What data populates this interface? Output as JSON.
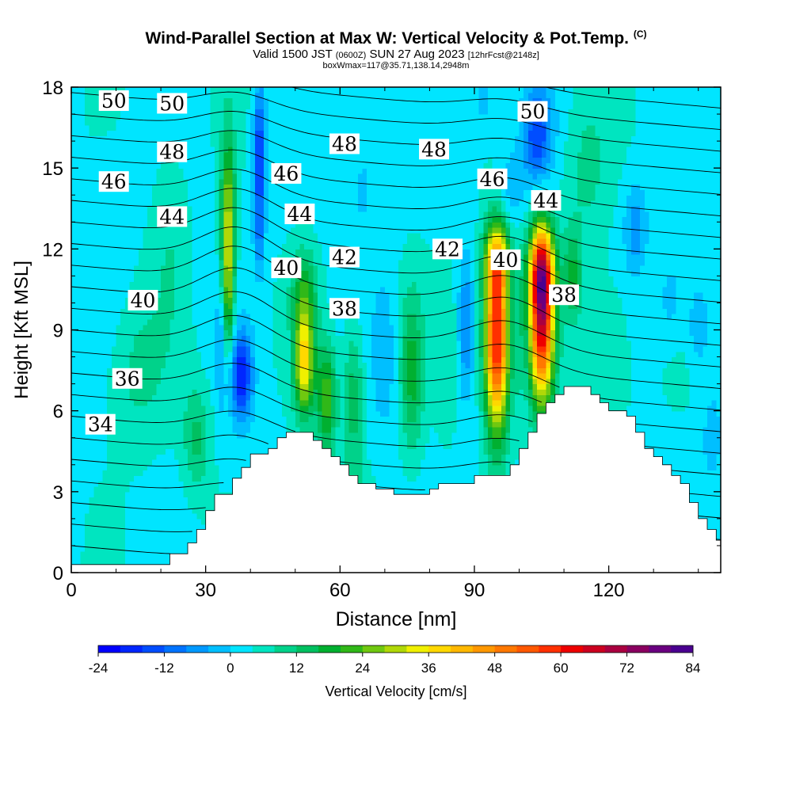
{
  "header": {
    "title": "Wind-Parallel Section at Max W: Vertical Velocity & Pot.Temp.",
    "copyright": "(C)",
    "sub_valid": "Valid 1500 JST",
    "sub_utc": "(0600Z)",
    "sub_date": "SUN 27 Aug 2023",
    "sub_fcst": "[12hrFcst@2148z]",
    "box_line": "boxWmax=117@35.71,138.14,2948m"
  },
  "chart_data": {
    "type": "heatmap",
    "title": "Wind-Parallel Section at Max W: Vertical Velocity & Pot.Temp.",
    "xlabel": "Distance [nm]",
    "ylabel": "Height [Kft MSL]",
    "xlim": [
      0,
      145
    ],
    "ylim": [
      0,
      18
    ],
    "x_ticks": [
      0,
      30,
      60,
      90,
      120
    ],
    "y_ticks": [
      0,
      3,
      6,
      9,
      12,
      15,
      18
    ],
    "colorbar": {
      "label": "Vertical Velocity [cm/s]",
      "ticks": [
        -24,
        -12,
        0,
        12,
        24,
        36,
        48,
        60,
        72,
        84
      ],
      "interval": 4,
      "colors": [
        "#0000ff",
        "#0026ff",
        "#004dff",
        "#0073ff",
        "#0099ff",
        "#00bfff",
        "#00e5ff",
        "#00e5c0",
        "#00d28a",
        "#00c060",
        "#00b030",
        "#30b818",
        "#70c810",
        "#b0d808",
        "#f0f000",
        "#ffd800",
        "#ffb800",
        "#ff9800",
        "#ff7800",
        "#ff5800",
        "#ff3000",
        "#ee0000",
        "#cc0020",
        "#aa0040",
        "#8a0060",
        "#6a0080",
        "#4a0090"
      ]
    },
    "terrain_kft": [
      [
        0,
        0.3
      ],
      [
        20,
        0.3
      ],
      [
        22,
        0.7
      ],
      [
        26,
        1.1
      ],
      [
        28,
        1.6
      ],
      [
        30,
        2.3
      ],
      [
        32,
        2.9
      ],
      [
        36,
        3.5
      ],
      [
        38,
        3.9
      ],
      [
        40,
        4.4
      ],
      [
        44,
        4.6
      ],
      [
        46,
        5.0
      ],
      [
        48,
        5.2
      ],
      [
        52,
        5.2
      ],
      [
        54,
        4.9
      ],
      [
        56,
        4.6
      ],
      [
        58,
        4.3
      ],
      [
        60,
        4.0
      ],
      [
        62,
        3.6
      ],
      [
        64,
        3.3
      ],
      [
        68,
        3.1
      ],
      [
        72,
        2.9
      ],
      [
        78,
        2.9
      ],
      [
        80,
        3.1
      ],
      [
        82,
        3.3
      ],
      [
        88,
        3.3
      ],
      [
        90,
        3.6
      ],
      [
        96,
        3.6
      ],
      [
        98,
        4.0
      ],
      [
        100,
        4.6
      ],
      [
        102,
        5.2
      ],
      [
        104,
        5.9
      ],
      [
        106,
        6.3
      ],
      [
        108,
        6.6
      ],
      [
        110,
        6.9
      ],
      [
        114,
        6.9
      ],
      [
        116,
        6.6
      ],
      [
        118,
        6.3
      ],
      [
        120,
        6.0
      ],
      [
        124,
        5.8
      ],
      [
        126,
        5.2
      ],
      [
        128,
        4.6
      ],
      [
        130,
        4.3
      ],
      [
        132,
        4.0
      ],
      [
        134,
        3.6
      ],
      [
        136,
        3.3
      ],
      [
        138,
        2.6
      ],
      [
        140,
        2.0
      ],
      [
        142,
        1.6
      ],
      [
        144,
        1.2
      ],
      [
        145,
        1.2
      ]
    ],
    "theta_contour_labels": [
      {
        "text": "50",
        "x": 9.5,
        "y": 17.5
      },
      {
        "text": "50",
        "x": 22.5,
        "y": 17.4
      },
      {
        "text": "48",
        "x": 22.5,
        "y": 15.6
      },
      {
        "text": "46",
        "x": 9.5,
        "y": 14.5
      },
      {
        "text": "44",
        "x": 22.5,
        "y": 13.2
      },
      {
        "text": "40",
        "x": 16,
        "y": 10.1
      },
      {
        "text": "36",
        "x": 12.5,
        "y": 7.2
      },
      {
        "text": "34",
        "x": 6.5,
        "y": 5.5
      },
      {
        "text": "46",
        "x": 48,
        "y": 14.8
      },
      {
        "text": "44",
        "x": 51,
        "y": 13.3
      },
      {
        "text": "40",
        "x": 48,
        "y": 11.3
      },
      {
        "text": "42",
        "x": 61,
        "y": 11.7
      },
      {
        "text": "38",
        "x": 61,
        "y": 9.8
      },
      {
        "text": "48",
        "x": 61,
        "y": 15.9
      },
      {
        "text": "48",
        "x": 81,
        "y": 15.7
      },
      {
        "text": "42",
        "x": 84,
        "y": 12.0
      },
      {
        "text": "46",
        "x": 94,
        "y": 14.6
      },
      {
        "text": "40",
        "x": 97,
        "y": 11.6
      },
      {
        "text": "44",
        "x": 106,
        "y": 13.8
      },
      {
        "text": "50",
        "x": 103,
        "y": 17.1
      },
      {
        "text": "38",
        "x": 110,
        "y": 10.3
      }
    ]
  },
  "colorbar_title": "Vertical Velocity [cm/s]"
}
